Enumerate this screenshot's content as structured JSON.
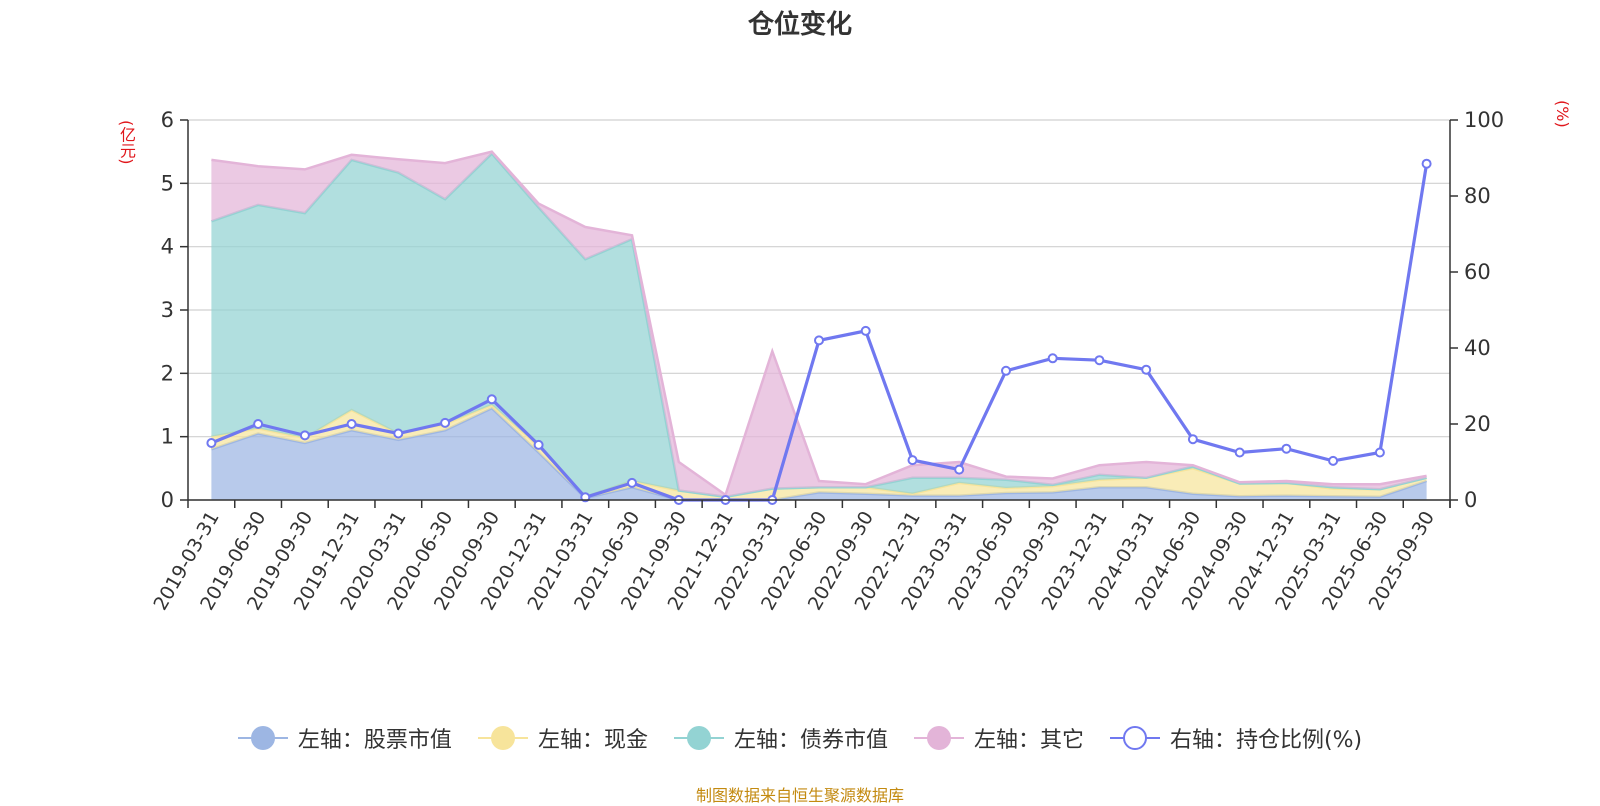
{
  "chart_data": {
    "type": "area",
    "title": "仓位变化",
    "left_axis_unit": "(亿元)",
    "right_axis_unit": "(%)",
    "left_ylim": [
      0,
      6
    ],
    "left_ticks": [
      "0",
      "1",
      "2",
      "3",
      "4",
      "5",
      "6"
    ],
    "right_ylim": [
      0,
      100
    ],
    "right_ticks": [
      "0",
      "20",
      "40",
      "60",
      "80",
      "100"
    ],
    "grid": true,
    "stacked": true,
    "legend_position": "bottom",
    "categories": [
      "2019-03-31",
      "2019-06-30",
      "2019-09-30",
      "2019-12-31",
      "2020-03-31",
      "2020-06-30",
      "2020-09-30",
      "2020-12-31",
      "2021-03-31",
      "2021-06-30",
      "2021-09-30",
      "2021-12-31",
      "2022-03-31",
      "2022-06-30",
      "2022-09-30",
      "2022-12-31",
      "2023-03-31",
      "2023-06-30",
      "2023-09-30",
      "2023-12-31",
      "2024-03-31",
      "2024-06-30",
      "2024-09-30",
      "2024-12-31",
      "2025-03-31",
      "2025-06-30",
      "2025-09-30"
    ],
    "series": [
      {
        "name": "左轴：股票市值",
        "axis": "left",
        "color": "#9db6e3",
        "values": [
          0.8,
          1.05,
          0.9,
          1.1,
          0.95,
          1.1,
          1.45,
          0.75,
          0.03,
          0.2,
          0,
          0,
          0,
          0.12,
          0.1,
          0.07,
          0.07,
          0.11,
          0.12,
          0.2,
          0.2,
          0.1,
          0.06,
          0.07,
          0.06,
          0.05,
          0.3
        ]
      },
      {
        "name": "左轴：现金",
        "axis": "left",
        "color": "#f7e49b",
        "values": [
          0.2,
          0.08,
          0.08,
          0.32,
          0.1,
          0.1,
          0.05,
          0.1,
          0.02,
          0.1,
          0.15,
          0.05,
          0.18,
          0.08,
          0.1,
          0.03,
          0.2,
          0.08,
          0.1,
          0.12,
          0.15,
          0.4,
          0.2,
          0.2,
          0.12,
          0.12,
          0.05
        ]
      },
      {
        "name": "左轴：债券市值",
        "axis": "left",
        "color": "#93d3d3",
        "values": [
          3.4,
          3.53,
          3.55,
          3.95,
          4.12,
          3.55,
          3.97,
          3.77,
          3.75,
          3.82,
          0,
          0,
          0,
          0,
          0,
          0.25,
          0.08,
          0.13,
          0.02,
          0.08,
          0,
          0.03,
          0,
          0,
          0.02,
          0,
          0
        ]
      },
      {
        "name": "左轴：其它",
        "axis": "left",
        "color": "#e3b4d8",
        "values": [
          0.97,
          0.61,
          0.69,
          0.08,
          0.21,
          0.57,
          0.03,
          0.06,
          0.51,
          0.06,
          0.45,
          0.03,
          2.17,
          0.1,
          0.05,
          0.2,
          0.25,
          0.05,
          0.1,
          0.15,
          0.25,
          0.02,
          0.02,
          0.03,
          0.05,
          0.08,
          0.03
        ]
      },
      {
        "name": "右轴：持仓比例(%)",
        "axis": "right",
        "color": "#7078f0",
        "values": [
          15,
          20,
          17,
          20,
          17.5,
          20.3,
          26.5,
          14.5,
          0.7,
          4.5,
          0,
          0,
          0,
          42,
          44.5,
          10.5,
          8,
          34,
          37.3,
          36.8,
          34.3,
          16,
          12.5,
          13.5,
          10.3,
          12.5,
          88.5
        ]
      }
    ]
  },
  "source": "制图数据来自恒生聚源数据库"
}
